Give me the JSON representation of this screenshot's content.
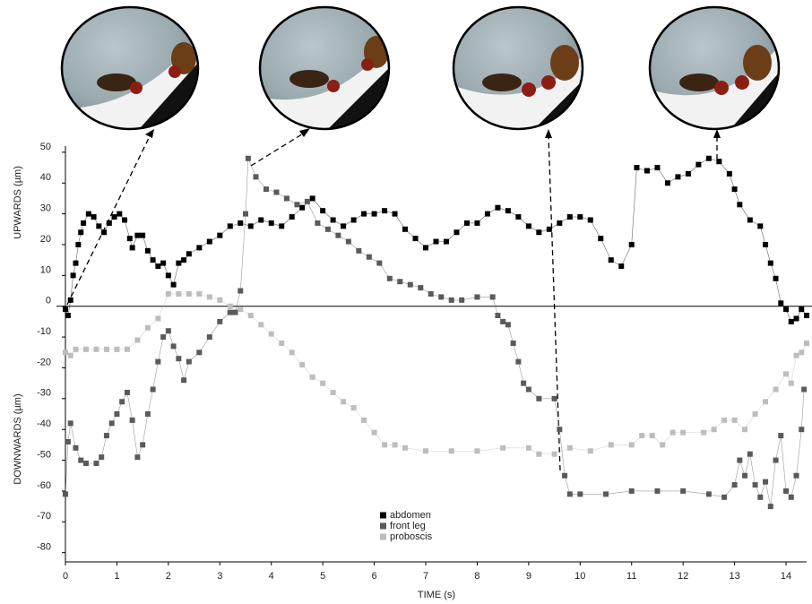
{
  "chart_data": {
    "type": "line",
    "x_label": "TIME (s)",
    "y_label_up": "UPWARDS (µm)",
    "y_label_down": "DOWNWARDS (µm)",
    "xlim": [
      0,
      14.4
    ],
    "ylim": [
      -83,
      52
    ],
    "xticks": [
      0,
      1,
      2,
      3,
      4,
      5,
      6,
      7,
      8,
      9,
      10,
      11,
      12,
      13,
      14
    ],
    "yticks": [
      -80,
      -70,
      -60,
      -50,
      -40,
      -30,
      -20,
      -10,
      0,
      10,
      20,
      30,
      40,
      50
    ],
    "series": [
      {
        "name": "abdomen",
        "color": "#000000",
        "x": [
          0,
          0.05,
          0.1,
          0.15,
          0.2,
          0.25,
          0.3,
          0.35,
          0.45,
          0.55,
          0.65,
          0.75,
          0.85,
          0.95,
          1.05,
          1.15,
          1.25,
          1.3,
          1.4,
          1.5,
          1.6,
          1.7,
          1.8,
          1.9,
          2.0,
          2.1,
          2.2,
          2.3,
          2.4,
          2.6,
          2.8,
          3.0,
          3.2,
          3.4,
          3.6,
          3.8,
          4.0,
          4.2,
          4.4,
          4.6,
          4.8,
          5.0,
          5.2,
          5.4,
          5.6,
          5.8,
          6.0,
          6.2,
          6.4,
          6.6,
          6.8,
          7.0,
          7.2,
          7.4,
          7.6,
          7.8,
          8.0,
          8.2,
          8.4,
          8.6,
          8.8,
          9.0,
          9.2,
          9.4,
          9.6,
          9.8,
          10.0,
          10.2,
          10.4,
          10.6,
          10.8,
          11.0,
          11.1,
          11.3,
          11.5,
          11.7,
          11.9,
          12.1,
          12.3,
          12.5,
          12.7,
          12.9,
          13.0,
          13.1,
          13.3,
          13.5,
          13.6,
          13.7,
          13.8,
          13.9,
          14.0,
          14.1,
          14.2,
          14.3,
          14.4
        ],
        "values": [
          -1,
          -3,
          2,
          10,
          14,
          20,
          24,
          27,
          30,
          29,
          26,
          24,
          27,
          29,
          30,
          28,
          22,
          19,
          23,
          23,
          18,
          15,
          13,
          14,
          10,
          7,
          14,
          15,
          17,
          19,
          21,
          23,
          26,
          27,
          26,
          28,
          27,
          26,
          29,
          32,
          35,
          31,
          28,
          26,
          28,
          30,
          30,
          31,
          30,
          25,
          22,
          19,
          21,
          21,
          24,
          27,
          27,
          30,
          32,
          31,
          29,
          26,
          24,
          25,
          27,
          29,
          29,
          28,
          22,
          15,
          13,
          20,
          45,
          44,
          45,
          40,
          42,
          43,
          46,
          48,
          47,
          43,
          38,
          33,
          28,
          26,
          20,
          14,
          9,
          1,
          -1,
          -5,
          -4,
          -1,
          -3
        ]
      },
      {
        "name": "front leg",
        "color": "#5a5a5a",
        "x": [
          0,
          0.05,
          0.1,
          0.2,
          0.3,
          0.4,
          0.6,
          0.7,
          0.8,
          0.9,
          1.0,
          1.1,
          1.2,
          1.3,
          1.4,
          1.5,
          1.6,
          1.7,
          1.8,
          1.9,
          2.0,
          2.1,
          2.2,
          2.3,
          2.4,
          2.6,
          2.8,
          3.0,
          3.2,
          3.3,
          3.4,
          3.5,
          3.55,
          3.7,
          3.9,
          4.1,
          4.3,
          4.5,
          4.7,
          4.9,
          5.1,
          5.3,
          5.5,
          5.7,
          5.9,
          6.1,
          6.3,
          6.5,
          6.7,
          6.9,
          7.1,
          7.3,
          7.5,
          7.7,
          8.0,
          8.3,
          8.4,
          8.5,
          8.6,
          8.7,
          8.8,
          8.9,
          9.0,
          9.2,
          9.5,
          9.6,
          9.7,
          9.8,
          10.0,
          10.5,
          11.0,
          11.5,
          12.0,
          12.5,
          12.8,
          13.0,
          13.1,
          13.2,
          13.3,
          13.4,
          13.5,
          13.6,
          13.7,
          13.8,
          13.9,
          14.0,
          14.1,
          14.2,
          14.3,
          14.35
        ],
        "values": [
          -61,
          -44,
          -38,
          -46,
          -50,
          -51,
          -51,
          -49,
          -42,
          -38,
          -35,
          -31,
          -28,
          -37,
          -49,
          -45,
          -35,
          -27,
          -18,
          -10,
          -8,
          -13,
          -17,
          -24,
          -18,
          -15,
          -10,
          -5,
          -2,
          -2,
          5,
          30,
          48,
          42,
          38,
          37,
          35,
          33,
          34,
          27,
          25,
          23,
          21,
          18,
          16,
          14,
          9,
          8,
          7,
          6,
          4,
          3,
          2,
          2,
          3,
          3,
          -3,
          -5,
          -6,
          -12,
          -18,
          -25,
          -27,
          -30,
          -30,
          -40,
          -55,
          -61,
          -61,
          -61,
          -60,
          -60,
          -60,
          -61,
          -62,
          -58,
          -50,
          -55,
          -48,
          -58,
          -62,
          -57,
          -65,
          -50,
          -42,
          -60,
          -62,
          -55,
          -40,
          -27
        ]
      },
      {
        "name": "proboscis",
        "color": "#bdbdbd",
        "x": [
          0,
          0.1,
          0.2,
          0.4,
          0.6,
          0.8,
          1.0,
          1.2,
          1.4,
          1.6,
          1.8,
          2.0,
          2.2,
          2.4,
          2.6,
          2.8,
          3.0,
          3.2,
          3.4,
          3.6,
          3.8,
          4.0,
          4.2,
          4.4,
          4.6,
          4.8,
          5.0,
          5.2,
          5.4,
          5.6,
          5.8,
          6.0,
          6.2,
          6.4,
          6.6,
          7.0,
          7.5,
          8.0,
          8.5,
          9.0,
          9.2,
          9.5,
          9.8,
          10.2,
          10.6,
          11.0,
          11.2,
          11.4,
          11.6,
          11.8,
          12.0,
          12.4,
          12.6,
          12.8,
          13.0,
          13.2,
          13.4,
          13.6,
          13.8,
          14.0,
          14.1,
          14.2,
          14.3,
          14.4
        ],
        "values": [
          -15,
          -16,
          -14,
          -14,
          -14,
          -14,
          -14,
          -14,
          -11,
          -7,
          -4,
          4,
          4,
          4,
          4,
          3,
          2,
          0,
          -1,
          -3,
          -6,
          -9,
          -12,
          -15,
          -19,
          -23,
          -25,
          -28,
          -31,
          -33,
          -37,
          -41,
          -45,
          -45,
          -46,
          -47,
          -47,
          -47,
          -46,
          -46,
          -48,
          -48,
          -46,
          -47,
          -45,
          -45,
          -42,
          -42,
          -45,
          -41,
          -41,
          -41,
          -40,
          -37,
          -37,
          -40,
          -35,
          -31,
          -27,
          -22,
          -25,
          -16,
          -15,
          -12
        ]
      }
    ]
  }
}
